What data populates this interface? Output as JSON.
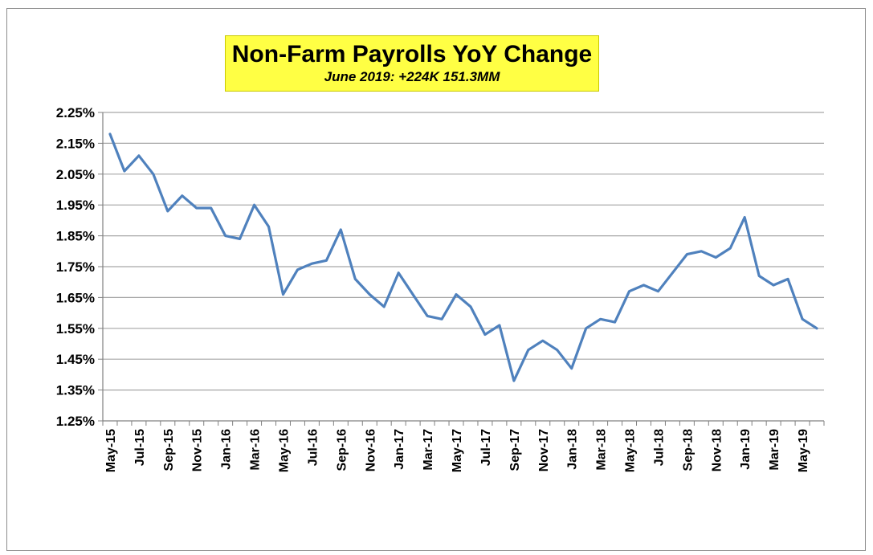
{
  "chart_data": {
    "type": "line",
    "title": "Non-Farm Payrolls YoY Change",
    "subtitle": "June 2019: +224K 151.3MM",
    "xlabel": "",
    "ylabel": "",
    "ylim": [
      1.25,
      2.25
    ],
    "y_ticks": [
      "1.25%",
      "1.35%",
      "1.45%",
      "1.55%",
      "1.65%",
      "1.75%",
      "1.85%",
      "1.95%",
      "2.05%",
      "2.15%",
      "2.25%"
    ],
    "x_tick_labels": [
      "May-15",
      "Jul-15",
      "Sep-15",
      "Nov-15",
      "Jan-16",
      "Mar-16",
      "May-16",
      "Jul-16",
      "Sep-16",
      "Nov-16",
      "Jan-17",
      "Mar-17",
      "May-17",
      "Jul-17",
      "Sep-17",
      "Nov-17",
      "Jan-18",
      "Mar-18",
      "May-18",
      "Jul-18",
      "Sep-18",
      "Nov-18",
      "Jan-19",
      "Mar-19",
      "May-19"
    ],
    "grid": true,
    "line_color": "#4f81bd",
    "categories": [
      "May-15",
      "Jun-15",
      "Jul-15",
      "Aug-15",
      "Sep-15",
      "Oct-15",
      "Nov-15",
      "Dec-15",
      "Jan-16",
      "Feb-16",
      "Mar-16",
      "Apr-16",
      "May-16",
      "Jun-16",
      "Jul-16",
      "Aug-16",
      "Sep-16",
      "Oct-16",
      "Nov-16",
      "Dec-16",
      "Jan-17",
      "Feb-17",
      "Mar-17",
      "Apr-17",
      "May-17",
      "Jun-17",
      "Jul-17",
      "Aug-17",
      "Sep-17",
      "Oct-17",
      "Nov-17",
      "Dec-17",
      "Jan-18",
      "Feb-18",
      "Mar-18",
      "Apr-18",
      "May-18",
      "Jun-18",
      "Jul-18",
      "Aug-18",
      "Sep-18",
      "Oct-18",
      "Nov-18",
      "Dec-18",
      "Jan-19",
      "Feb-19",
      "Mar-19",
      "Apr-19",
      "May-19",
      "Jun-19"
    ],
    "values": [
      2.18,
      2.06,
      2.11,
      2.05,
      1.93,
      1.98,
      1.94,
      1.94,
      1.85,
      1.84,
      1.95,
      1.88,
      1.66,
      1.74,
      1.76,
      1.77,
      1.87,
      1.71,
      1.66,
      1.62,
      1.73,
      1.66,
      1.59,
      1.58,
      1.66,
      1.62,
      1.53,
      1.56,
      1.38,
      1.48,
      1.51,
      1.48,
      1.42,
      1.55,
      1.58,
      1.57,
      1.67,
      1.69,
      1.67,
      1.73,
      1.79,
      1.8,
      1.78,
      1.81,
      1.91,
      1.72,
      1.69,
      1.71,
      1.58,
      1.55
    ]
  }
}
